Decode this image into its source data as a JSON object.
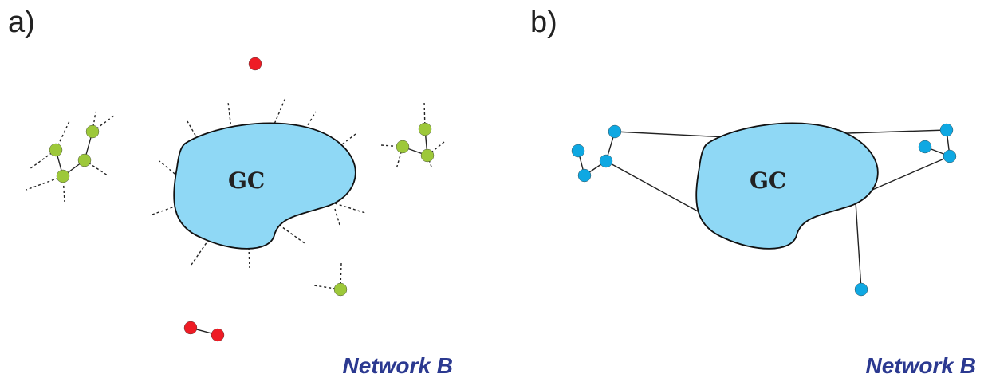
{
  "panels": [
    {
      "label": "a)",
      "gc_label": "GC",
      "caption": "Network B"
    },
    {
      "label": "b)",
      "gc_label": "GC",
      "caption": "Network B"
    }
  ],
  "colors": {
    "giant_component": "#8fd8f5",
    "finite_cluster_node": "#9dc83a",
    "isolated_node": "#ee1c25",
    "panel_b_node": "#0fa8e2",
    "caption": "#2b3990"
  }
}
